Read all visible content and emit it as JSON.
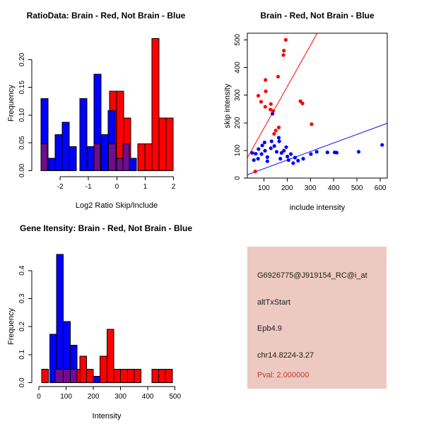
{
  "colors": {
    "red": "#FF0000",
    "blue": "#0000FF",
    "purple": "#6F0D8F",
    "axis": "#000000",
    "panel_bg": "#ECC9C1",
    "pval_red": "#CB3333"
  },
  "info_panel": {
    "probe_id": "G6926775@J919154_RC@i_at",
    "event_type": "altTxStart",
    "gene": "Epb4.9",
    "location": "chr14.8224-3.27",
    "pval": "Pval: 2.000000"
  },
  "chart_data": [
    {
      "id": "ratio_hist",
      "type": "bar",
      "title": "RatioData: Brain - Red, Not Brain - Blue",
      "xlabel": "Log2 Ratio Skip/Include",
      "ylabel": "Frequency",
      "xlim": [
        -3.0,
        2.11
      ],
      "ylim": [
        -0.011,
        0.249
      ],
      "xticks": [
        -2,
        -1,
        0,
        1,
        2
      ],
      "xtick_labels": [
        "-2",
        "-1",
        "0",
        "1",
        "2"
      ],
      "yticks": [
        0,
        0.05,
        0.1,
        0.15,
        0.2
      ],
      "ytick_labels": [
        "0.00",
        "0.05",
        "0.10",
        "0.15",
        "0.20"
      ],
      "blue_bars": [
        {
          "x0": -2.68,
          "x1": -2.43,
          "h": 0.13
        },
        {
          "x0": -2.43,
          "x1": -2.18,
          "h": 0.022
        },
        {
          "x0": -2.18,
          "x1": -1.93,
          "h": 0.065
        },
        {
          "x0": -1.93,
          "x1": -1.68,
          "h": 0.087
        },
        {
          "x0": -1.68,
          "x1": -1.43,
          "h": 0.043
        },
        {
          "x0": -1.31,
          "x1": -1.06,
          "h": 0.13
        },
        {
          "x0": -1.06,
          "x1": -0.81,
          "h": 0.043
        },
        {
          "x0": -0.81,
          "x1": -0.56,
          "h": 0.174
        },
        {
          "x0": -0.56,
          "x1": -0.31,
          "h": 0.065
        },
        {
          "x0": -0.31,
          "x1": -0.06,
          "h": 0.108
        },
        {
          "x0": 0.44,
          "x1": 0.69,
          "h": 0.022
        }
      ],
      "red_bars": [
        {
          "x0": -0.26,
          "x1": -0.01,
          "h": 0.143
        },
        {
          "x0": -0.01,
          "x1": 0.24,
          "h": 0.143
        },
        {
          "x0": 0.24,
          "x1": 0.49,
          "h": 0.095
        },
        {
          "x0": 0.74,
          "x1": 0.99,
          "h": 0.048
        },
        {
          "x0": 0.99,
          "x1": 1.24,
          "h": 0.048
        },
        {
          "x0": 1.24,
          "x1": 1.49,
          "h": 0.238
        },
        {
          "x0": 1.49,
          "x1": 1.74,
          "h": 0.095
        },
        {
          "x0": 1.74,
          "x1": 1.99,
          "h": 0.095
        }
      ],
      "purple_bars": [
        {
          "x0": -2.68,
          "x1": -2.45,
          "h": 0.048
        },
        {
          "x0": -0.81,
          "x1": -0.58,
          "h": 0.048
        },
        {
          "x0": -0.29,
          "x1": -0.03,
          "h": 0.048
        },
        {
          "x0": -0.01,
          "x1": 0.21,
          "h": 0.022
        },
        {
          "x0": 0.21,
          "x1": 0.44,
          "h": 0.048
        }
      ]
    },
    {
      "id": "skip_include_scatter",
      "type": "scatter",
      "title": "Brain - Red, Not Brain - Blue",
      "xlabel": "include intensity",
      "ylabel": "skip intensity",
      "xlim": [
        29,
        630
      ],
      "ylim": [
        0,
        524
      ],
      "xticks": [
        100,
        200,
        300,
        400,
        500,
        600
      ],
      "xtick_labels": [
        "100",
        "200",
        "300",
        "400",
        "500",
        "600"
      ],
      "yticks": [
        0,
        100,
        200,
        300,
        400,
        500
      ],
      "ytick_labels": [
        "0",
        "100",
        "200",
        "300",
        "400",
        "500"
      ],
      "red_points": [
        [
          63,
          24
        ],
        [
          194,
          500
        ],
        [
          186,
          461
        ],
        [
          184,
          445
        ],
        [
          161,
          367
        ],
        [
          107,
          355
        ],
        [
          108,
          314
        ],
        [
          76,
          298
        ],
        [
          88,
          276
        ],
        [
          106,
          258
        ],
        [
          130,
          268
        ],
        [
          128,
          248
        ],
        [
          140,
          243
        ],
        [
          144,
          160
        ],
        [
          151,
          172
        ],
        [
          164,
          183
        ],
        [
          257,
          278
        ],
        [
          266,
          270
        ],
        [
          305,
          195
        ]
      ],
      "blue_points": [
        [
          50,
          91
        ],
        [
          57,
          65
        ],
        [
          65,
          88
        ],
        [
          75,
          70
        ],
        [
          77,
          105
        ],
        [
          90,
          87
        ],
        [
          93,
          118
        ],
        [
          103,
          129
        ],
        [
          105,
          99
        ],
        [
          115,
          76
        ],
        [
          115,
          61
        ],
        [
          130,
          108
        ],
        [
          133,
          133
        ],
        [
          137,
          233
        ],
        [
          145,
          116
        ],
        [
          155,
          95
        ],
        [
          164,
          146
        ],
        [
          166,
          133
        ],
        [
          171,
          70
        ],
        [
          176,
          91
        ],
        [
          186,
          99
        ],
        [
          196,
          112
        ],
        [
          201,
          78
        ],
        [
          206,
          65
        ],
        [
          216,
          87
        ],
        [
          226,
          54
        ],
        [
          234,
          74
        ],
        [
          247,
          63
        ],
        [
          269,
          70
        ],
        [
          302,
          87
        ],
        [
          327,
          95
        ],
        [
          373,
          93
        ],
        [
          404,
          93
        ],
        [
          413,
          92
        ],
        [
          507,
          95
        ],
        [
          608,
          120
        ]
      ],
      "red_line": {
        "slope": 1.5,
        "intercept": 30
      },
      "blue_line": {
        "slope": 0.31,
        "intercept": 3
      }
    },
    {
      "id": "gene_intensity_hist",
      "type": "bar",
      "title": "Gene Itensity: Brain - Red, Not Brain - Blue",
      "xlabel": "Intensity",
      "ylabel": "Frequency",
      "xlim": [
        -26,
        506
      ],
      "ylim": [
        -0.014,
        0.47
      ],
      "xticks": [
        0,
        100,
        200,
        300,
        400,
        500
      ],
      "xtick_labels": [
        "0",
        "100",
        "200",
        "300",
        "400",
        "500"
      ],
      "yticks": [
        0,
        0.1,
        0.2,
        0.3,
        0.4
      ],
      "ytick_labels": [
        "0.0",
        "0.1",
        "0.2",
        "0.3",
        "0.4"
      ],
      "red_bars": [
        {
          "x0": 10,
          "x1": 35,
          "h": 0.048
        },
        {
          "x0": 50,
          "x1": 75,
          "h": 0.048
        },
        {
          "x0": 75,
          "x1": 100,
          "h": 0.048
        },
        {
          "x0": 100,
          "x1": 125,
          "h": 0.048
        },
        {
          "x0": 125,
          "x1": 150,
          "h": 0.048
        },
        {
          "x0": 150,
          "x1": 175,
          "h": 0.095
        },
        {
          "x0": 175,
          "x1": 200,
          "h": 0.048
        },
        {
          "x0": 225,
          "x1": 250,
          "h": 0.095
        },
        {
          "x0": 250,
          "x1": 275,
          "h": 0.19
        },
        {
          "x0": 275,
          "x1": 300,
          "h": 0.048
        },
        {
          "x0": 300,
          "x1": 325,
          "h": 0.048
        },
        {
          "x0": 325,
          "x1": 350,
          "h": 0.048
        },
        {
          "x0": 350,
          "x1": 375,
          "h": 0.048
        },
        {
          "x0": 415,
          "x1": 440,
          "h": 0.048
        },
        {
          "x0": 440,
          "x1": 465,
          "h": 0.048
        },
        {
          "x0": 465,
          "x1": 490,
          "h": 0.048
        }
      ],
      "blue_bars": [
        {
          "x0": 40,
          "x1": 65,
          "h": 0.173
        },
        {
          "x0": 65,
          "x1": 90,
          "h": 0.457
        },
        {
          "x0": 90,
          "x1": 115,
          "h": 0.218
        },
        {
          "x0": 115,
          "x1": 140,
          "h": 0.133
        },
        {
          "x0": 200,
          "x1": 225,
          "h": 0.022
        }
      ],
      "purple_bars": [
        {
          "x0": 60,
          "x1": 90,
          "h": 0.048
        },
        {
          "x0": 90,
          "x1": 115,
          "h": 0.048
        },
        {
          "x0": 115,
          "x1": 140,
          "h": 0.048
        }
      ]
    }
  ]
}
